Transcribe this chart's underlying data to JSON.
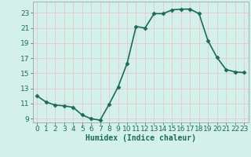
{
  "x": [
    0,
    1,
    2,
    3,
    4,
    5,
    6,
    7,
    8,
    9,
    10,
    11,
    12,
    13,
    14,
    15,
    16,
    17,
    18,
    19,
    20,
    21,
    22,
    23
  ],
  "y": [
    12.0,
    11.2,
    10.8,
    10.7,
    10.5,
    9.5,
    9.0,
    8.8,
    10.9,
    13.2,
    16.3,
    21.2,
    21.0,
    22.9,
    22.9,
    23.4,
    23.5,
    23.5,
    22.9,
    19.3,
    17.1,
    15.5,
    15.2,
    15.1
  ],
  "line_color": "#1a6b5a",
  "marker": "D",
  "marker_size": 2.5,
  "bg_color": "#d4f0eb",
  "grid_color": "#c0ddd8",
  "xlabel": "Humidex (Indice chaleur)",
  "xlim": [
    -0.5,
    23.5
  ],
  "ylim": [
    8.5,
    24.5
  ],
  "yticks": [
    9,
    11,
    13,
    15,
    17,
    19,
    21,
    23
  ],
  "xticks": [
    0,
    1,
    2,
    3,
    4,
    5,
    6,
    7,
    8,
    9,
    10,
    11,
    12,
    13,
    14,
    15,
    16,
    17,
    18,
    19,
    20,
    21,
    22,
    23
  ],
  "xlabel_fontsize": 7,
  "tick_fontsize": 6.5,
  "line_width": 1.2
}
